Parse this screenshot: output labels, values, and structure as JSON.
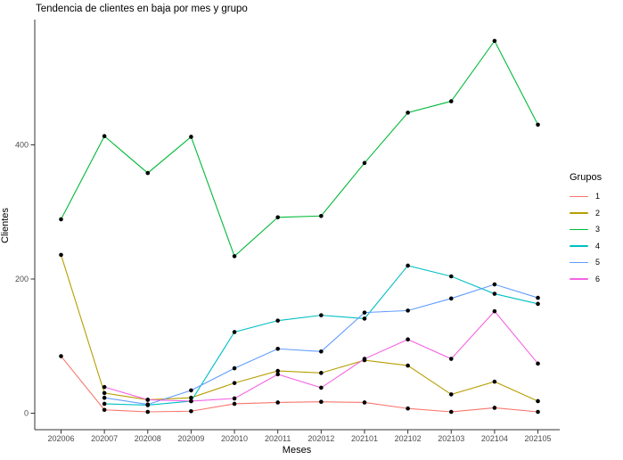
{
  "title": "Tendencia de clientes en baja por mes y grupo",
  "chart_data": {
    "type": "line",
    "title": "Tendencia de clientes en baja por mes y grupo",
    "xlabel": "Meses",
    "ylabel": "Clientes",
    "x_categories": [
      "202006",
      "202007",
      "202008",
      "202009",
      "202010",
      "202011",
      "202012",
      "202101",
      "202102",
      "202103",
      "202104",
      "202105"
    ],
    "y_ticks": [
      0,
      200,
      400
    ],
    "ylim": [
      0,
      560
    ],
    "grid": false,
    "point_color": "#000000",
    "axis_color": "#333333",
    "tick_label_color": "#4d4d4d",
    "legend": {
      "title": "Grupos",
      "position": "right",
      "entries": [
        "1",
        "2",
        "3",
        "4",
        "5",
        "6"
      ]
    },
    "series": [
      {
        "name": "1",
        "color": "#F8766D",
        "values": [
          85,
          5,
          2,
          3,
          14,
          16,
          17,
          16,
          7,
          2,
          8,
          2
        ]
      },
      {
        "name": "2",
        "color": "#B79F00",
        "values": [
          236,
          30,
          20,
          23,
          45,
          63,
          60,
          79,
          71,
          28,
          47,
          18
        ]
      },
      {
        "name": "3",
        "color": "#00BA38",
        "values": [
          289,
          413,
          358,
          412,
          234,
          292,
          294,
          373,
          448,
          465,
          555,
          430
        ]
      },
      {
        "name": "4",
        "color": "#00BFC4",
        "values": [
          null,
          14,
          12,
          18,
          121,
          138,
          146,
          141,
          220,
          204,
          178,
          163
        ]
      },
      {
        "name": "5",
        "color": "#619CFF",
        "values": [
          null,
          23,
          13,
          34,
          67,
          96,
          92,
          150,
          153,
          171,
          192,
          172
        ]
      },
      {
        "name": "6",
        "color": "#F564E3",
        "values": [
          null,
          39,
          20,
          18,
          22,
          58,
          38,
          81,
          110,
          81,
          152,
          74
        ]
      }
    ]
  }
}
